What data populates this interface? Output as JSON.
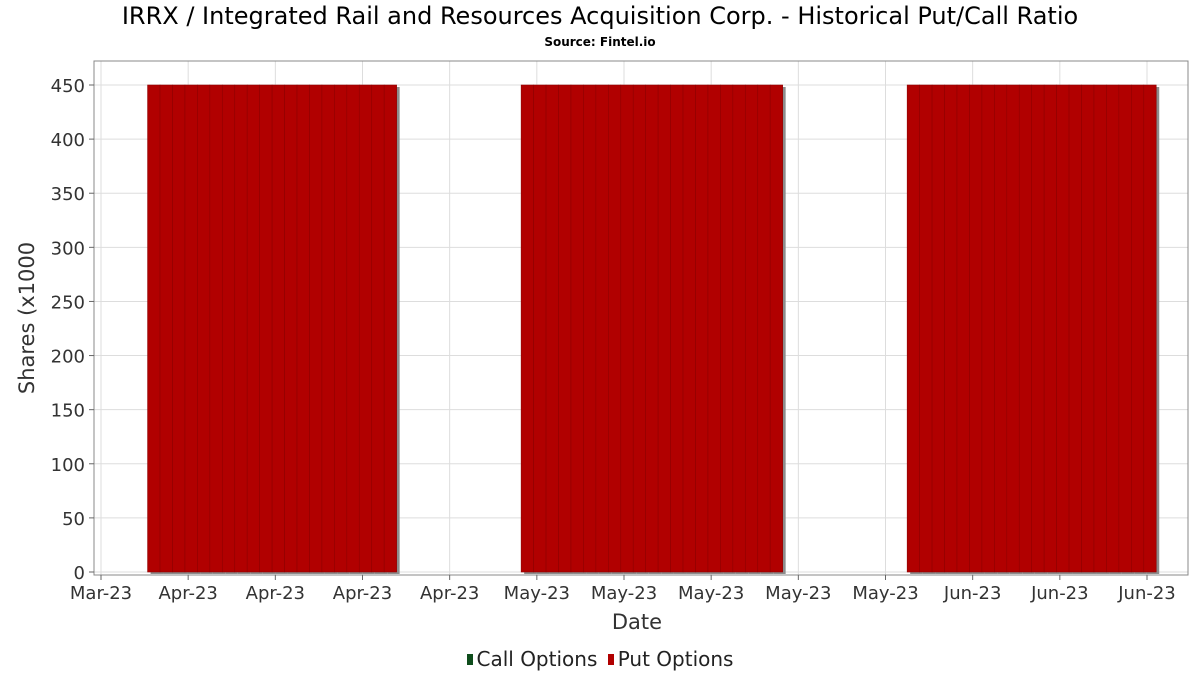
{
  "title": "IRRX / Integrated Rail and Resources Acquisition Corp. - Historical Put/Call Ratio",
  "subtitle": "Source: Fintel.io",
  "colors": {
    "put": "#b10000",
    "call": "#0f4d1c",
    "grid": "#dddddd",
    "shadow": "#8c8c8c"
  },
  "chart_data": {
    "type": "bar",
    "title": "IRRX / Integrated Rail and Resources Acquisition Corp. - Historical Put/Call Ratio",
    "xlabel": "Date",
    "ylabel": "Shares (x1000",
    "ylim": [
      0,
      450
    ],
    "yticks": [
      0,
      50,
      100,
      150,
      200,
      250,
      300,
      350,
      400,
      450
    ],
    "xlim": [
      "2023-03-27",
      "2023-06-20"
    ],
    "xticks": [
      {
        "date": "2023-03-27",
        "label": "Mar-23"
      },
      {
        "date": "2023-04-03",
        "label": "Apr-23"
      },
      {
        "date": "2023-04-10",
        "label": "Apr-23"
      },
      {
        "date": "2023-04-17",
        "label": "Apr-23"
      },
      {
        "date": "2023-04-24",
        "label": "Apr-23"
      },
      {
        "date": "2023-05-01",
        "label": "May-23"
      },
      {
        "date": "2023-05-08",
        "label": "May-23"
      },
      {
        "date": "2023-05-15",
        "label": "May-23"
      },
      {
        "date": "2023-05-22",
        "label": "May-23"
      },
      {
        "date": "2023-05-29",
        "label": "May-23"
      },
      {
        "date": "2023-06-05",
        "label": "Jun-23"
      },
      {
        "date": "2023-06-12",
        "label": "Jun-23"
      },
      {
        "date": "2023-06-19",
        "label": "Jun-23"
      }
    ],
    "grid": true,
    "legend_position": "bottom",
    "series": [
      {
        "name": "Call Options",
        "color": "#0f4d1c",
        "points": []
      },
      {
        "name": "Put Options",
        "color": "#b10000",
        "points": [
          {
            "x": "2023-03-31",
            "y": 450
          },
          {
            "x": "2023-04-01",
            "y": 450
          },
          {
            "x": "2023-04-02",
            "y": 450
          },
          {
            "x": "2023-04-03",
            "y": 450
          },
          {
            "x": "2023-04-04",
            "y": 450
          },
          {
            "x": "2023-04-05",
            "y": 450
          },
          {
            "x": "2023-04-06",
            "y": 450
          },
          {
            "x": "2023-04-07",
            "y": 450
          },
          {
            "x": "2023-04-08",
            "y": 450
          },
          {
            "x": "2023-04-09",
            "y": 450
          },
          {
            "x": "2023-04-10",
            "y": 450
          },
          {
            "x": "2023-04-11",
            "y": 450
          },
          {
            "x": "2023-04-12",
            "y": 450
          },
          {
            "x": "2023-04-13",
            "y": 450
          },
          {
            "x": "2023-04-14",
            "y": 450
          },
          {
            "x": "2023-04-15",
            "y": 450
          },
          {
            "x": "2023-04-16",
            "y": 450
          },
          {
            "x": "2023-04-17",
            "y": 450
          },
          {
            "x": "2023-04-18",
            "y": 450
          },
          {
            "x": "2023-04-19",
            "y": 450
          },
          {
            "x": "2023-04-30",
            "y": 450
          },
          {
            "x": "2023-05-01",
            "y": 450
          },
          {
            "x": "2023-05-02",
            "y": 450
          },
          {
            "x": "2023-05-03",
            "y": 450
          },
          {
            "x": "2023-05-04",
            "y": 450
          },
          {
            "x": "2023-05-05",
            "y": 450
          },
          {
            "x": "2023-05-06",
            "y": 450
          },
          {
            "x": "2023-05-07",
            "y": 450
          },
          {
            "x": "2023-05-08",
            "y": 450
          },
          {
            "x": "2023-05-09",
            "y": 450
          },
          {
            "x": "2023-05-10",
            "y": 450
          },
          {
            "x": "2023-05-11",
            "y": 450
          },
          {
            "x": "2023-05-12",
            "y": 450
          },
          {
            "x": "2023-05-13",
            "y": 450
          },
          {
            "x": "2023-05-14",
            "y": 450
          },
          {
            "x": "2023-05-15",
            "y": 450
          },
          {
            "x": "2023-05-16",
            "y": 450
          },
          {
            "x": "2023-05-17",
            "y": 450
          },
          {
            "x": "2023-05-18",
            "y": 450
          },
          {
            "x": "2023-05-19",
            "y": 450
          },
          {
            "x": "2023-05-20",
            "y": 450
          },
          {
            "x": "2023-05-31",
            "y": 450
          },
          {
            "x": "2023-06-01",
            "y": 450
          },
          {
            "x": "2023-06-02",
            "y": 450
          },
          {
            "x": "2023-06-03",
            "y": 450
          },
          {
            "x": "2023-06-04",
            "y": 450
          },
          {
            "x": "2023-06-05",
            "y": 450
          },
          {
            "x": "2023-06-06",
            "y": 450
          },
          {
            "x": "2023-06-07",
            "y": 450
          },
          {
            "x": "2023-06-08",
            "y": 450
          },
          {
            "x": "2023-06-09",
            "y": 450
          },
          {
            "x": "2023-06-10",
            "y": 450
          },
          {
            "x": "2023-06-11",
            "y": 450
          },
          {
            "x": "2023-06-12",
            "y": 450
          },
          {
            "x": "2023-06-13",
            "y": 450
          },
          {
            "x": "2023-06-14",
            "y": 450
          },
          {
            "x": "2023-06-15",
            "y": 450
          },
          {
            "x": "2023-06-16",
            "y": 450
          },
          {
            "x": "2023-06-17",
            "y": 450
          },
          {
            "x": "2023-06-18",
            "y": 450
          },
          {
            "x": "2023-06-19",
            "y": 450
          }
        ]
      }
    ]
  }
}
